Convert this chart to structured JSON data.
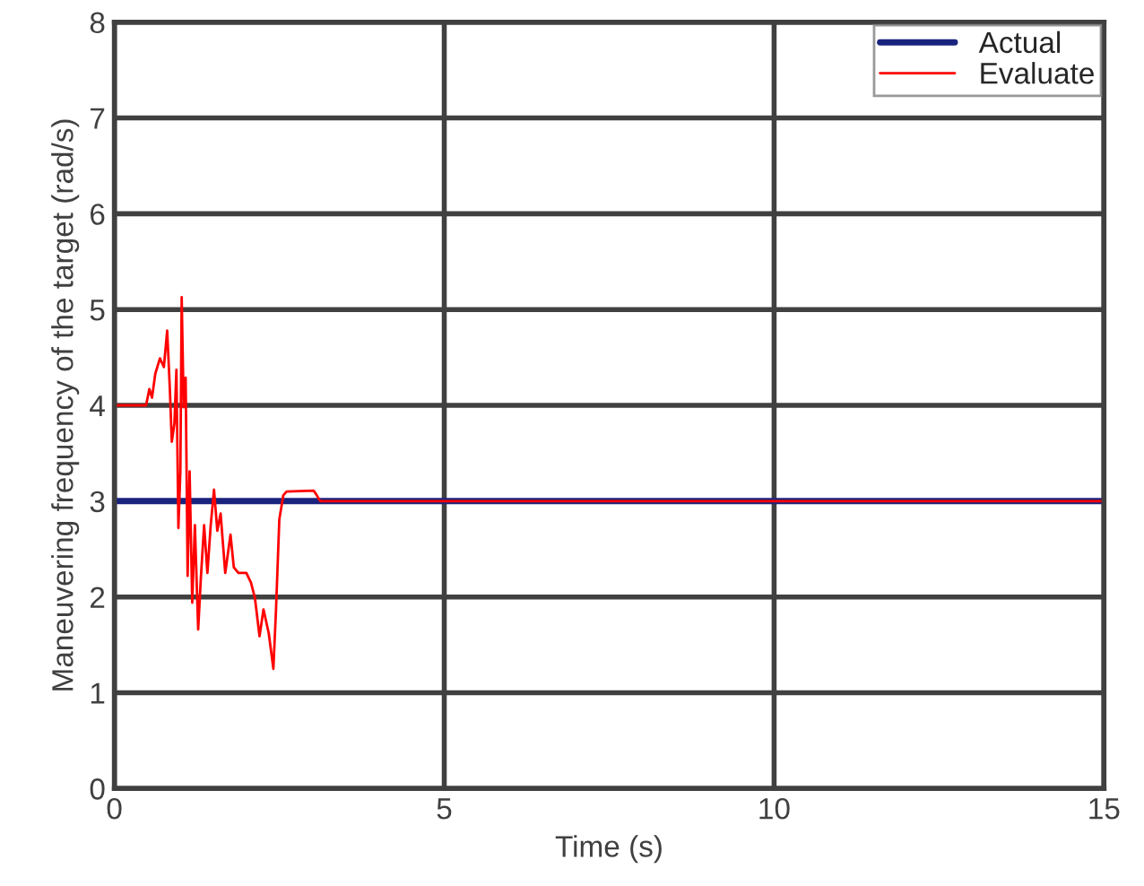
{
  "chart_data": {
    "type": "line",
    "xlabel": "Time (s)",
    "ylabel": "Maneuvering frequency of the target (rad/s)",
    "xlim": [
      0,
      15
    ],
    "xticks": [
      0,
      5,
      10,
      15
    ],
    "ylim": [
      0,
      8
    ],
    "yticks": [
      0,
      1,
      2,
      3,
      4,
      5,
      6,
      7,
      8
    ],
    "grid": true,
    "legend": "top right",
    "series": [
      {
        "name": "Actual",
        "color": "#1a237e",
        "x": [
          0,
          15
        ],
        "values": [
          3,
          3
        ]
      },
      {
        "name": "Evaluate",
        "color": "#ff0000",
        "x": [
          0,
          0.48,
          0.53,
          0.57,
          0.62,
          0.69,
          0.75,
          0.8,
          0.84,
          0.87,
          0.91,
          0.94,
          0.97,
          1.0,
          1.02,
          1.05,
          1.08,
          1.11,
          1.14,
          1.18,
          1.22,
          1.27,
          1.31,
          1.36,
          1.41,
          1.46,
          1.51,
          1.56,
          1.61,
          1.68,
          1.76,
          1.81,
          1.88,
          2.0,
          2.07,
          2.13,
          2.2,
          2.26,
          2.34,
          2.41,
          2.45,
          2.5,
          2.56,
          2.61,
          3.02,
          3.06,
          3.12,
          15
        ],
        "values": [
          4.0,
          4.0,
          4.17,
          4.08,
          4.33,
          4.49,
          4.4,
          4.78,
          4.18,
          3.62,
          3.81,
          4.37,
          2.72,
          3.31,
          5.13,
          3.98,
          4.29,
          2.22,
          3.31,
          1.94,
          2.75,
          1.66,
          2.19,
          2.75,
          2.25,
          2.75,
          3.12,
          2.69,
          2.87,
          2.25,
          2.65,
          2.31,
          2.25,
          2.25,
          2.15,
          1.99,
          1.59,
          1.87,
          1.62,
          1.25,
          1.87,
          2.81,
          3.06,
          3.1,
          3.11,
          3.07,
          3.0,
          3.0
        ]
      }
    ]
  }
}
